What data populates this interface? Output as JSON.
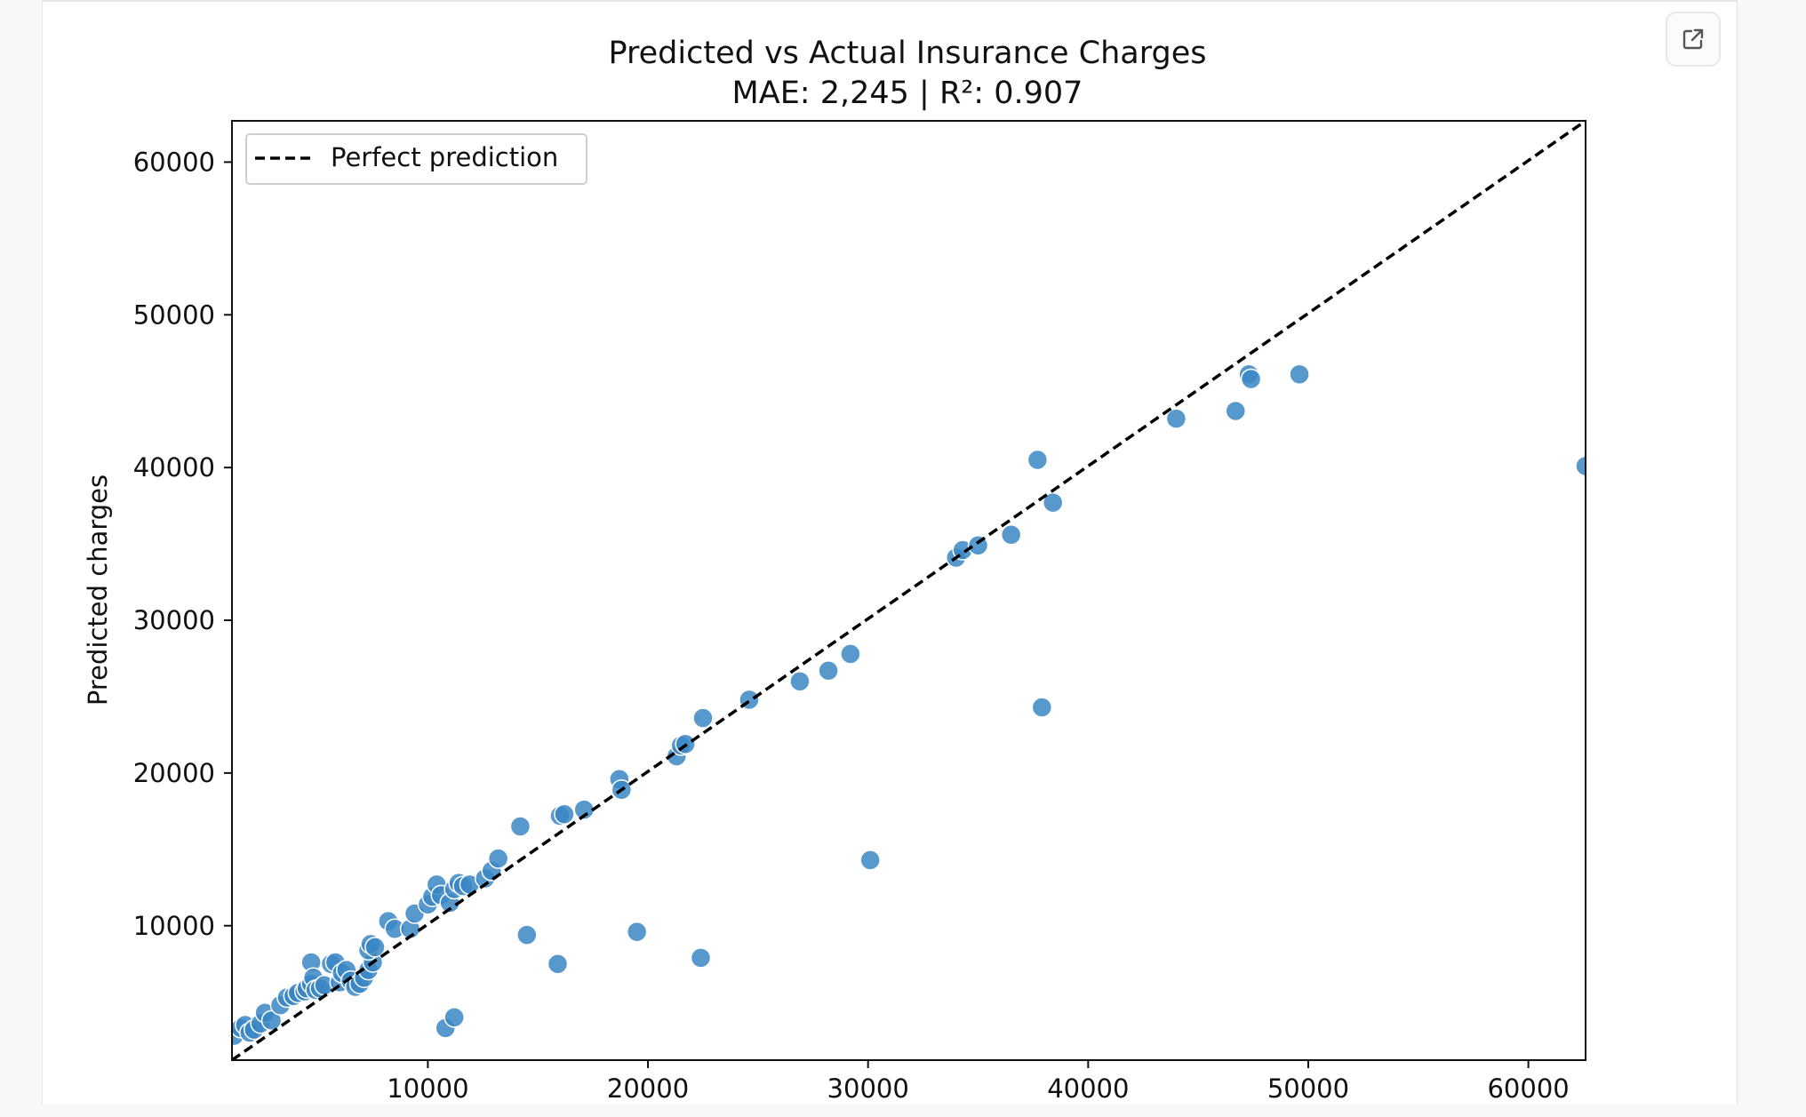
{
  "chart_data": {
    "type": "scatter",
    "title": "Predicted vs Actual Insurance Charges",
    "subtitle": "MAE: 2,245 | R²: 0.907",
    "xlabel": "",
    "ylabel": "Predicted charges",
    "xlim": [
      1100,
      62600
    ],
    "ylim": [
      1200,
      62700
    ],
    "xticks": [
      10000,
      20000,
      30000,
      40000,
      50000,
      60000
    ],
    "yticks": [
      10000,
      20000,
      30000,
      40000,
      50000,
      60000
    ],
    "tick_labels_x": [
      "10000",
      "20000",
      "30000",
      "40000",
      "50000",
      "60000"
    ],
    "tick_labels_y": [
      "10000",
      "20000",
      "30000",
      "40000",
      "50000",
      "60000"
    ],
    "grid": false,
    "legend": {
      "position": "top-left",
      "entries": [
        "Perfect prediction"
      ]
    },
    "reference_line": {
      "name": "Perfect prediction",
      "style": "dashed",
      "color": "#000000",
      "from": [
        1100,
        1200
      ],
      "to": [
        62600,
        62700
      ]
    },
    "point_color": "#3a86c4",
    "points": [
      [
        1200,
        2800
      ],
      [
        1500,
        3300
      ],
      [
        1700,
        3500
      ],
      [
        1900,
        3000
      ],
      [
        2100,
        3200
      ],
      [
        2400,
        3600
      ],
      [
        2600,
        4300
      ],
      [
        2900,
        3800
      ],
      [
        3300,
        4800
      ],
      [
        3600,
        5300
      ],
      [
        3900,
        5400
      ],
      [
        4100,
        5600
      ],
      [
        4400,
        5700
      ],
      [
        4500,
        5900
      ],
      [
        4700,
        6200
      ],
      [
        4700,
        7600
      ],
      [
        4800,
        6600
      ],
      [
        4900,
        5800
      ],
      [
        5100,
        5900
      ],
      [
        5300,
        6100
      ],
      [
        5600,
        7500
      ],
      [
        5800,
        7600
      ],
      [
        6000,
        6300
      ],
      [
        6100,
        6900
      ],
      [
        6300,
        7100
      ],
      [
        6500,
        6400
      ],
      [
        6700,
        6000
      ],
      [
        6900,
        6200
      ],
      [
        7100,
        6600
      ],
      [
        7300,
        7100
      ],
      [
        7500,
        7600
      ],
      [
        7300,
        8400
      ],
      [
        7400,
        8800
      ],
      [
        7600,
        8600
      ],
      [
        8200,
        10300
      ],
      [
        8500,
        9800
      ],
      [
        9200,
        9800
      ],
      [
        9400,
        10800
      ],
      [
        10000,
        11400
      ],
      [
        10200,
        11900
      ],
      [
        10400,
        12700
      ],
      [
        10600,
        12000
      ],
      [
        11000,
        11500
      ],
      [
        11200,
        12400
      ],
      [
        11400,
        12800
      ],
      [
        11600,
        12600
      ],
      [
        11900,
        12700
      ],
      [
        12600,
        13100
      ],
      [
        12900,
        13600
      ],
      [
        13200,
        14400
      ],
      [
        14200,
        16500
      ],
      [
        16000,
        17200
      ],
      [
        16200,
        17300
      ],
      [
        17100,
        17600
      ],
      [
        18700,
        19600
      ],
      [
        18800,
        18900
      ],
      [
        21300,
        21100
      ],
      [
        21500,
        21800
      ],
      [
        21700,
        21900
      ],
      [
        22500,
        23600
      ],
      [
        24600,
        24800
      ],
      [
        26900,
        26000
      ],
      [
        28200,
        26700
      ],
      [
        29200,
        27800
      ],
      [
        34000,
        34100
      ],
      [
        34300,
        34600
      ],
      [
        35000,
        34900
      ],
      [
        36500,
        35600
      ],
      [
        37700,
        40500
      ],
      [
        38400,
        37700
      ],
      [
        44000,
        43200
      ],
      [
        46700,
        43700
      ],
      [
        47300,
        46100
      ],
      [
        47400,
        45800
      ],
      [
        49600,
        46100
      ],
      [
        62600,
        40100
      ],
      [
        37900,
        24300
      ],
      [
        30100,
        14300
      ],
      [
        14500,
        9400
      ],
      [
        15900,
        7500
      ],
      [
        19500,
        9600
      ],
      [
        22400,
        7900
      ],
      [
        10800,
        3300
      ],
      [
        11200,
        4000
      ]
    ]
  }
}
